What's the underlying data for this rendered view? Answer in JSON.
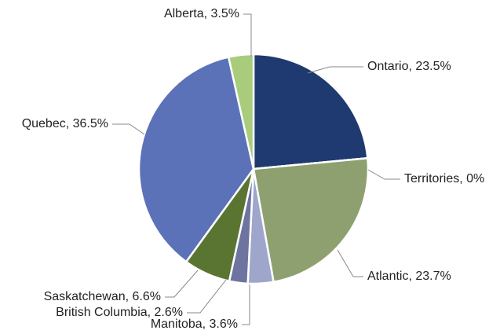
{
  "chart_data": {
    "type": "pie",
    "categories": [
      "Ontario",
      "Territories",
      "Atlantic",
      "Manitoba",
      "British Columbia",
      "Saskatchewan",
      "Quebec",
      "Alberta"
    ],
    "values": [
      23.5,
      0,
      23.7,
      3.6,
      2.6,
      6.6,
      36.5,
      3.5
    ],
    "value_labels": [
      "23.5%",
      "0%",
      "23.7%",
      "3.6%",
      "2.6%",
      "6.6%",
      "36.5%",
      "3.5%"
    ],
    "label_separator": ", ",
    "colors": [
      "#1f3a70",
      "#3d5a99",
      "#8fa070",
      "#9fa6cc",
      "#6e73a0",
      "#5a7532",
      "#5b72b8",
      "#a8cc7c"
    ]
  }
}
